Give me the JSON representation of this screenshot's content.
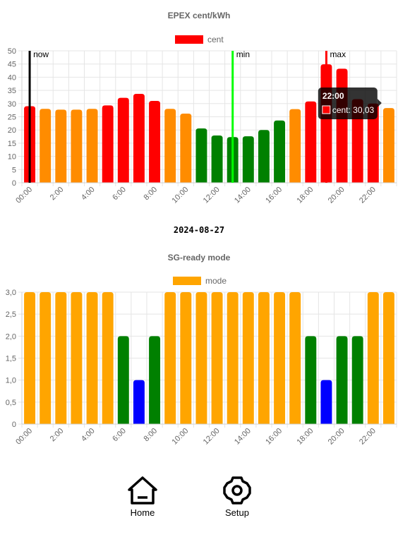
{
  "chart_data": [
    {
      "type": "bar",
      "title": "EPEX cent/kWh",
      "legend": {
        "label": "cent",
        "color": "#ff0000",
        "placement": "top"
      },
      "categories": [
        "00:00",
        "1:00",
        "2:00",
        "3:00",
        "4:00",
        "5:00",
        "6:00",
        "7:00",
        "8:00",
        "9:00",
        "10:00",
        "11:00",
        "12:00",
        "13:00",
        "14:00",
        "15:00",
        "16:00",
        "17:00",
        "18:00",
        "19:00",
        "20:00",
        "21:00",
        "22:00",
        "23:00"
      ],
      "x_tick_labels": [
        "00:00",
        "2:00",
        "4:00",
        "6:00",
        "8:00",
        "10:00",
        "12:00",
        "14:00",
        "16:00",
        "18:00",
        "20:00",
        "22:00"
      ],
      "values": [
        29.0,
        28.0,
        27.7,
        27.7,
        28.0,
        29.3,
        32.2,
        33.7,
        31.0,
        28.0,
        26.2,
        20.6,
        17.9,
        17.3,
        17.6,
        20.0,
        23.6,
        27.9,
        30.8,
        44.9,
        43.2,
        31.7,
        30.03,
        28.3
      ],
      "colors": [
        "#ff0000",
        "#ff8c00",
        "#ff8c00",
        "#ff8c00",
        "#ff8c00",
        "#ff0000",
        "#ff0000",
        "#ff0000",
        "#ff0000",
        "#ff8c00",
        "#ff8c00",
        "#008000",
        "#008000",
        "#008000",
        "#008000",
        "#008000",
        "#008000",
        "#ff8c00",
        "#ff0000",
        "#ff0000",
        "#ff0000",
        "#ff0000",
        "#ff0000",
        "#ff8c00"
      ],
      "ylim": [
        0,
        50
      ],
      "y_ticks": [
        0,
        5,
        10,
        15,
        20,
        25,
        30,
        35,
        40,
        45,
        50
      ],
      "grid": true,
      "markers": [
        {
          "label": "now",
          "index": 0,
          "color": "#000000"
        },
        {
          "label": "min",
          "index": 13,
          "color": "#00ff00"
        },
        {
          "label": "max",
          "index": 19,
          "color": "#ff0000"
        }
      ],
      "tooltip": {
        "index": 22,
        "title": "22:00",
        "body": "cent: 30,03"
      }
    },
    {
      "type": "bar",
      "title": "SG-ready mode",
      "legend": {
        "label": "mode",
        "color": "#ffa500",
        "placement": "top"
      },
      "categories": [
        "00:00",
        "1:00",
        "2:00",
        "3:00",
        "4:00",
        "5:00",
        "6:00",
        "7:00",
        "8:00",
        "9:00",
        "10:00",
        "11:00",
        "12:00",
        "13:00",
        "14:00",
        "15:00",
        "16:00",
        "17:00",
        "18:00",
        "19:00",
        "20:00",
        "21:00",
        "22:00",
        "23:00"
      ],
      "x_tick_labels": [
        "00:00",
        "2:00",
        "4:00",
        "6:00",
        "8:00",
        "10:00",
        "12:00",
        "14:00",
        "16:00",
        "18:00",
        "20:00",
        "22:00"
      ],
      "values": [
        3,
        3,
        3,
        3,
        3,
        3,
        2,
        1,
        2,
        3,
        3,
        3,
        3,
        3,
        3,
        3,
        3,
        3,
        2,
        1,
        2,
        2,
        3,
        3
      ],
      "colors": [
        "#ffa500",
        "#ffa500",
        "#ffa500",
        "#ffa500",
        "#ffa500",
        "#ffa500",
        "#008000",
        "#0000ff",
        "#008000",
        "#ffa500",
        "#ffa500",
        "#ffa500",
        "#ffa500",
        "#ffa500",
        "#ffa500",
        "#ffa500",
        "#ffa500",
        "#ffa500",
        "#008000",
        "#0000ff",
        "#008000",
        "#008000",
        "#ffa500",
        "#ffa500"
      ],
      "ylim": [
        0,
        3
      ],
      "y_tick_labels": [
        "0",
        "0,5",
        "1,0",
        "1,5",
        "2,0",
        "2,5",
        "3,0"
      ],
      "grid": true
    }
  ],
  "date": "2024-08-27",
  "nav": {
    "home_label": "Home",
    "home_icon": "home-icon",
    "setup_label": "Setup",
    "setup_icon": "gear-icon"
  }
}
